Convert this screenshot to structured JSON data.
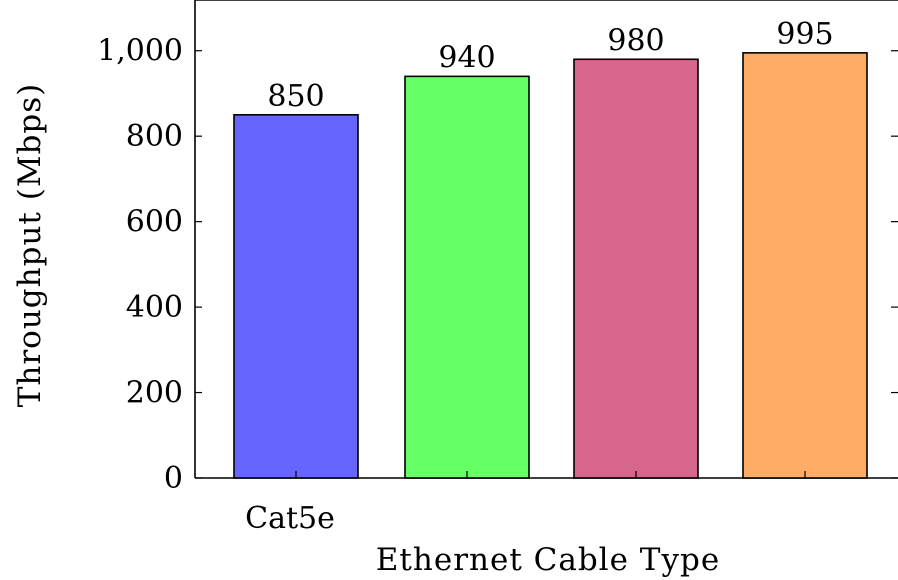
{
  "chart_data": {
    "type": "bar",
    "title": "",
    "xlabel": "Ethernet Cable Type",
    "ylabel": "Throughput (Mbps)",
    "categories": [
      "Cat5e",
      "",
      "",
      ""
    ],
    "values": [
      850,
      940,
      980,
      995
    ],
    "data_labels": [
      "850",
      "940",
      "980",
      "995"
    ],
    "bar_colors": [
      "#6666ff",
      "#66ff66",
      "#d6668c",
      "#ffad66"
    ],
    "ylim": [
      0,
      1100
    ],
    "yticks": [
      0,
      200,
      400,
      600,
      800,
      1000
    ],
    "ytick_labels": [
      "0",
      "200",
      "400",
      "600",
      "800",
      "1,000"
    ],
    "grid": false,
    "legend": "none"
  }
}
